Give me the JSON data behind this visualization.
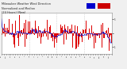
{
  "background_color": "#f0f0f0",
  "plot_bg_color": "#ffffff",
  "bar_color": "#dd0000",
  "median_color": "#0000cc",
  "grid_color": "#bbbbbb",
  "n_bars": 288,
  "ylim": [
    -1.5,
    1.5
  ],
  "ytick_vals": [
    1,
    0,
    -1
  ],
  "ytick_labels": [
    "5",
    " ",
    "-1"
  ],
  "legend_blue": "#0000cc",
  "legend_red": "#cc0000",
  "title_fontsize": 2.8,
  "tick_fontsize": 2.0
}
